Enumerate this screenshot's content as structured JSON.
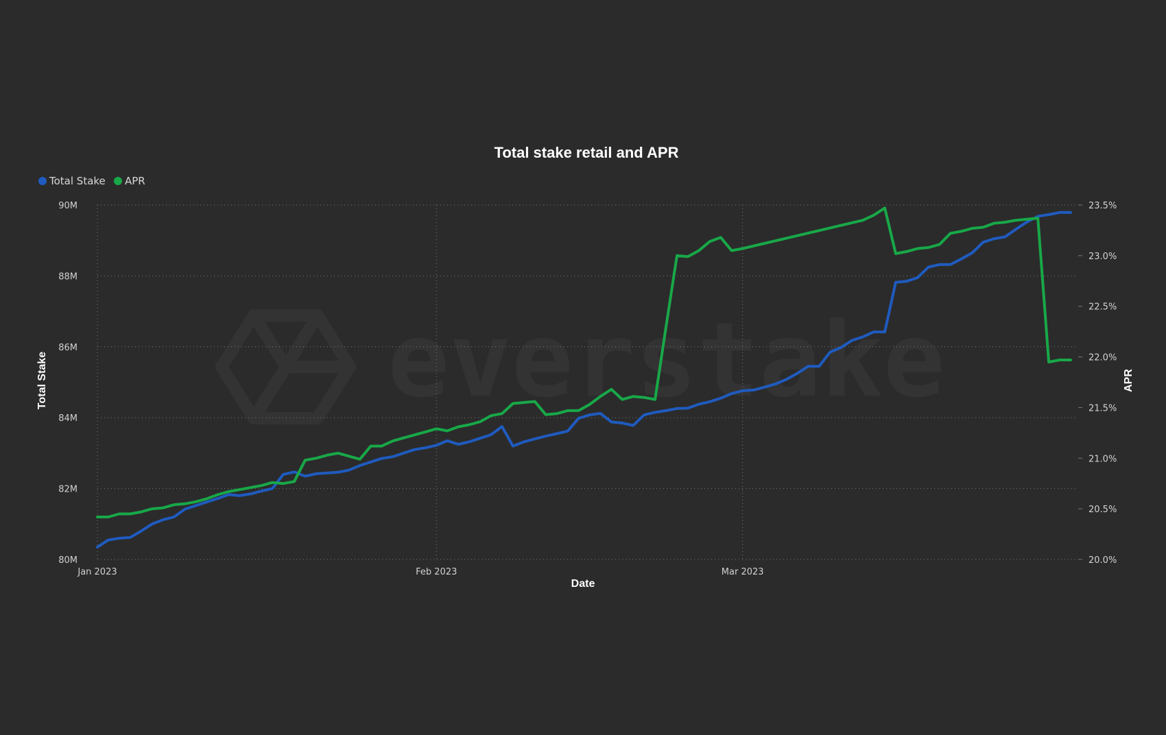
{
  "colors": {
    "background": "#2b2b2b",
    "total_stake": "#1f5bbf",
    "apr": "#18a848",
    "watermark": "#333333"
  },
  "watermark": {
    "text": "everstake",
    "icon": "hexagon-logo-icon"
  },
  "chart_data": {
    "type": "line",
    "title": "Total stake retail and APR",
    "xlabel": "Date",
    "ylabel": "Total Stake",
    "y2label": "APR",
    "x_ticks": [
      "Jan 2023",
      "Feb 2023",
      "Mar 2023"
    ],
    "y_ticks": [
      "80M",
      "82M",
      "84M",
      "86M",
      "88M",
      "90M"
    ],
    "y2_ticks": [
      "20.0%",
      "20.5%",
      "21.0%",
      "21.5%",
      "22.0%",
      "22.5%",
      "23.0%",
      "23.5%"
    ],
    "ylim": [
      80,
      90
    ],
    "y2lim": [
      20.0,
      23.5
    ],
    "xlim": [
      "2023-01-01",
      "2023-03-31"
    ],
    "grid": true,
    "legend_position": "top-left",
    "series": [
      {
        "name": "Total Stake",
        "axis": "left",
        "unit": "M",
        "points": [
          [
            "2023-01-01",
            80.35
          ],
          [
            "2023-01-02",
            80.55
          ],
          [
            "2023-01-03",
            80.6
          ],
          [
            "2023-01-04",
            80.62
          ],
          [
            "2023-01-05",
            80.8
          ],
          [
            "2023-01-06",
            81.0
          ],
          [
            "2023-01-07",
            81.12
          ],
          [
            "2023-01-08",
            81.2
          ],
          [
            "2023-01-09",
            81.42
          ],
          [
            "2023-01-10",
            81.52
          ],
          [
            "2023-01-11",
            81.62
          ],
          [
            "2023-01-12",
            81.72
          ],
          [
            "2023-01-13",
            81.83
          ],
          [
            "2023-01-14",
            81.8
          ],
          [
            "2023-01-15",
            81.85
          ],
          [
            "2023-01-16",
            81.93
          ],
          [
            "2023-01-17",
            82.0
          ],
          [
            "2023-01-18",
            82.4
          ],
          [
            "2023-01-19",
            82.47
          ],
          [
            "2023-01-20",
            82.35
          ],
          [
            "2023-01-21",
            82.42
          ],
          [
            "2023-01-22",
            82.44
          ],
          [
            "2023-01-23",
            82.46
          ],
          [
            "2023-01-24",
            82.52
          ],
          [
            "2023-01-25",
            82.65
          ],
          [
            "2023-01-26",
            82.75
          ],
          [
            "2023-01-27",
            82.85
          ],
          [
            "2023-01-28",
            82.9
          ],
          [
            "2023-01-29",
            83.0
          ],
          [
            "2023-01-30",
            83.1
          ],
          [
            "2023-01-31",
            83.15
          ],
          [
            "2023-02-01",
            83.22
          ],
          [
            "2023-02-02",
            83.35
          ],
          [
            "2023-02-03",
            83.25
          ],
          [
            "2023-02-04",
            83.32
          ],
          [
            "2023-02-05",
            83.42
          ],
          [
            "2023-02-06",
            83.52
          ],
          [
            "2023-02-07",
            83.75
          ],
          [
            "2023-02-08",
            83.2
          ],
          [
            "2023-02-09",
            83.32
          ],
          [
            "2023-02-10",
            83.4
          ],
          [
            "2023-02-11",
            83.48
          ],
          [
            "2023-02-12",
            83.55
          ],
          [
            "2023-02-13",
            83.62
          ],
          [
            "2023-02-14",
            83.98
          ],
          [
            "2023-02-15",
            84.08
          ],
          [
            "2023-02-16",
            84.12
          ],
          [
            "2023-02-17",
            83.88
          ],
          [
            "2023-02-18",
            83.85
          ],
          [
            "2023-02-19",
            83.78
          ],
          [
            "2023-02-20",
            84.08
          ],
          [
            "2023-02-21",
            84.15
          ],
          [
            "2023-02-22",
            84.2
          ],
          [
            "2023-02-23",
            84.26
          ],
          [
            "2023-02-24",
            84.27
          ],
          [
            "2023-02-25",
            84.38
          ],
          [
            "2023-02-26",
            84.45
          ],
          [
            "2023-02-27",
            84.55
          ],
          [
            "2023-02-28",
            84.68
          ],
          [
            "2023-03-01",
            84.76
          ],
          [
            "2023-03-02",
            84.78
          ],
          [
            "2023-03-03",
            84.86
          ],
          [
            "2023-03-04",
            84.95
          ],
          [
            "2023-03-05",
            85.08
          ],
          [
            "2023-03-06",
            85.25
          ],
          [
            "2023-03-07",
            85.45
          ],
          [
            "2023-03-08",
            85.45
          ],
          [
            "2023-03-09",
            85.85
          ],
          [
            "2023-03-10",
            85.98
          ],
          [
            "2023-03-11",
            86.18
          ],
          [
            "2023-03-12",
            86.28
          ],
          [
            "2023-03-13",
            86.42
          ],
          [
            "2023-03-14",
            86.42
          ],
          [
            "2023-03-15",
            87.82
          ],
          [
            "2023-03-16",
            87.85
          ],
          [
            "2023-03-17",
            87.95
          ],
          [
            "2023-03-18",
            88.25
          ],
          [
            "2023-03-19",
            88.32
          ],
          [
            "2023-03-20",
            88.32
          ],
          [
            "2023-03-21",
            88.48
          ],
          [
            "2023-03-22",
            88.65
          ],
          [
            "2023-03-23",
            88.95
          ],
          [
            "2023-03-24",
            89.05
          ],
          [
            "2023-03-25",
            89.1
          ],
          [
            "2023-03-26",
            89.32
          ],
          [
            "2023-03-27",
            89.52
          ],
          [
            "2023-03-28",
            89.68
          ],
          [
            "2023-03-29",
            89.73
          ],
          [
            "2023-03-30",
            89.79
          ],
          [
            "2023-03-31",
            89.79
          ]
        ]
      },
      {
        "name": "APR",
        "axis": "right",
        "unit": "%",
        "points": [
          [
            "2023-01-01",
            20.42
          ],
          [
            "2023-01-02",
            20.42
          ],
          [
            "2023-01-03",
            20.45
          ],
          [
            "2023-01-04",
            20.45
          ],
          [
            "2023-01-05",
            20.47
          ],
          [
            "2023-01-06",
            20.5
          ],
          [
            "2023-01-07",
            20.51
          ],
          [
            "2023-01-08",
            20.54
          ],
          [
            "2023-01-09",
            20.55
          ],
          [
            "2023-01-10",
            20.57
          ],
          [
            "2023-01-11",
            20.6
          ],
          [
            "2023-01-12",
            20.64
          ],
          [
            "2023-01-13",
            20.67
          ],
          [
            "2023-01-14",
            20.69
          ],
          [
            "2023-01-15",
            20.71
          ],
          [
            "2023-01-16",
            20.73
          ],
          [
            "2023-01-17",
            20.76
          ],
          [
            "2023-01-18",
            20.75
          ],
          [
            "2023-01-19",
            20.77
          ],
          [
            "2023-01-20",
            20.98
          ],
          [
            "2023-01-21",
            21.0
          ],
          [
            "2023-01-22",
            21.03
          ],
          [
            "2023-01-23",
            21.05
          ],
          [
            "2023-01-24",
            21.02
          ],
          [
            "2023-01-25",
            20.99
          ],
          [
            "2023-01-26",
            21.12
          ],
          [
            "2023-01-27",
            21.12
          ],
          [
            "2023-01-28",
            21.17
          ],
          [
            "2023-01-29",
            21.2
          ],
          [
            "2023-01-30",
            21.23
          ],
          [
            "2023-01-31",
            21.26
          ],
          [
            "2023-02-01",
            21.29
          ],
          [
            "2023-02-02",
            21.27
          ],
          [
            "2023-02-03",
            21.31
          ],
          [
            "2023-02-04",
            21.33
          ],
          [
            "2023-02-05",
            21.36
          ],
          [
            "2023-02-06",
            21.42
          ],
          [
            "2023-02-07",
            21.44
          ],
          [
            "2023-02-08",
            21.54
          ],
          [
            "2023-02-09",
            21.55
          ],
          [
            "2023-02-10",
            21.56
          ],
          [
            "2023-02-11",
            21.43
          ],
          [
            "2023-02-12",
            21.44
          ],
          [
            "2023-02-13",
            21.47
          ],
          [
            "2023-02-14",
            21.47
          ],
          [
            "2023-02-15",
            21.53
          ],
          [
            "2023-02-16",
            21.61
          ],
          [
            "2023-02-17",
            21.68
          ],
          [
            "2023-02-18",
            21.58
          ],
          [
            "2023-02-19",
            21.61
          ],
          [
            "2023-02-20",
            21.6
          ],
          [
            "2023-02-21",
            21.58
          ],
          [
            "2023-02-22",
            22.3
          ],
          [
            "2023-02-23",
            23.0
          ],
          [
            "2023-02-24",
            22.99
          ],
          [
            "2023-02-25",
            23.05
          ],
          [
            "2023-02-26",
            23.14
          ],
          [
            "2023-02-27",
            23.18
          ],
          [
            "2023-02-28",
            23.05
          ],
          [
            "2023-03-01",
            23.07
          ],
          [
            "2023-03-12",
            23.35
          ],
          [
            "2023-03-13",
            23.4
          ],
          [
            "2023-03-14",
            23.47
          ],
          [
            "2023-03-15",
            23.02
          ],
          [
            "2023-03-16",
            23.04
          ],
          [
            "2023-03-17",
            23.07
          ],
          [
            "2023-03-18",
            23.08
          ],
          [
            "2023-03-19",
            23.11
          ],
          [
            "2023-03-20",
            23.22
          ],
          [
            "2023-03-21",
            23.24
          ],
          [
            "2023-03-22",
            23.27
          ],
          [
            "2023-03-23",
            23.28
          ],
          [
            "2023-03-24",
            23.32
          ],
          [
            "2023-03-25",
            23.33
          ],
          [
            "2023-03-26",
            23.35
          ],
          [
            "2023-03-27",
            23.36
          ],
          [
            "2023-03-28",
            23.37
          ],
          [
            "2023-03-29",
            21.95
          ],
          [
            "2023-03-30",
            21.97
          ],
          [
            "2023-03-31",
            21.97
          ]
        ]
      }
    ]
  }
}
